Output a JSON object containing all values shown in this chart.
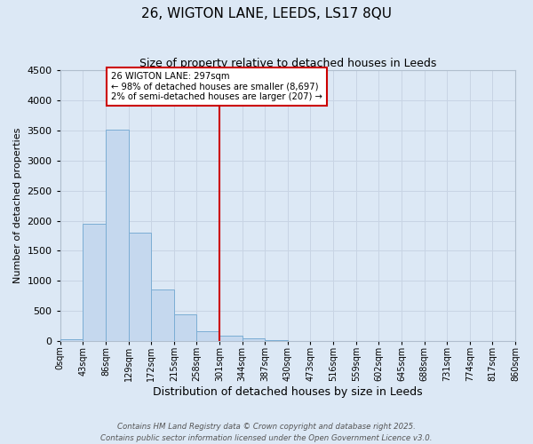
{
  "title": "26, WIGTON LANE, LEEDS, LS17 8QU",
  "subtitle": "Size of property relative to detached houses in Leeds",
  "xlabel": "Distribution of detached houses by size in Leeds",
  "ylabel": "Number of detached properties",
  "bar_color": "#c5d8ee",
  "bar_edge_color": "#7badd4",
  "background_color": "#dce8f5",
  "bin_edges": [
    0,
    43,
    86,
    129,
    172,
    215,
    258,
    301,
    344,
    387,
    430,
    473,
    516,
    559,
    602,
    645,
    688,
    731,
    774,
    817,
    860
  ],
  "bin_labels": [
    "0sqm",
    "43sqm",
    "86sqm",
    "129sqm",
    "172sqm",
    "215sqm",
    "258sqm",
    "301sqm",
    "344sqm",
    "387sqm",
    "430sqm",
    "473sqm",
    "516sqm",
    "559sqm",
    "602sqm",
    "645sqm",
    "688sqm",
    "731sqm",
    "774sqm",
    "817sqm",
    "860sqm"
  ],
  "bar_heights": [
    25,
    1950,
    3520,
    1800,
    860,
    450,
    160,
    85,
    45,
    20,
    0,
    0,
    0,
    0,
    0,
    0,
    0,
    0,
    0,
    0
  ],
  "vline_x": 301,
  "vline_color": "#cc0000",
  "annotation_title": "26 WIGTON LANE: 297sqm",
  "annotation_line1": "← 98% of detached houses are smaller (8,697)",
  "annotation_line2": "2% of semi-detached houses are larger (207) →",
  "annotation_box_color": "#cc0000",
  "ylim": [
    0,
    4500
  ],
  "yticks": [
    0,
    500,
    1000,
    1500,
    2000,
    2500,
    3000,
    3500,
    4000,
    4500
  ],
  "footer1": "Contains HM Land Registry data © Crown copyright and database right 2025.",
  "footer2": "Contains public sector information licensed under the Open Government Licence v3.0.",
  "grid_color": "#c8d4e4"
}
